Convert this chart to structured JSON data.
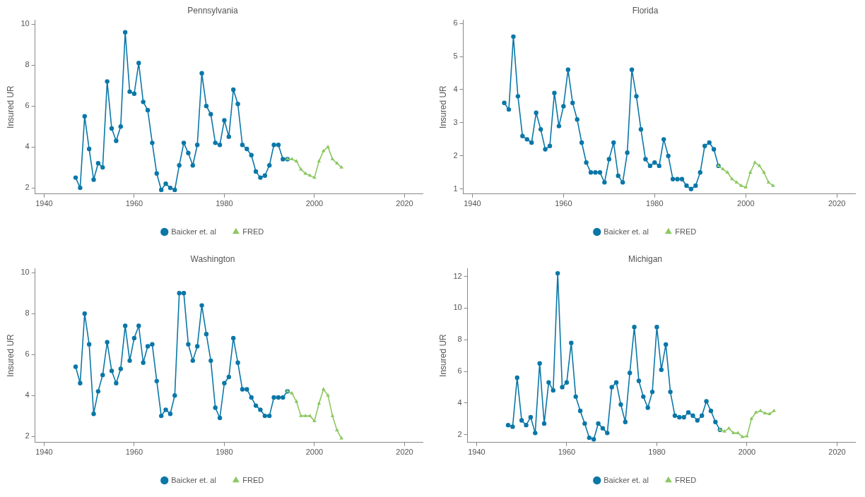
{
  "chart_data": [
    {
      "type": "line",
      "title": "Pennsylvania",
      "ylabel": "Insured UR",
      "xlim": [
        1938,
        2024
      ],
      "xticks": [
        1940,
        1960,
        1980,
        2000,
        2020
      ],
      "ylim": [
        1.7,
        10.2
      ],
      "yticks": [
        2,
        4,
        6,
        8,
        10
      ],
      "grid": false,
      "legend": "bottom",
      "series": [
        {
          "name": "Baicker et. al",
          "color": "#0a77a8",
          "marker": "circle",
          "x": [
            1947,
            1948,
            1949,
            1950,
            1951,
            1952,
            1953,
            1954,
            1955,
            1956,
            1957,
            1958,
            1959,
            1960,
            1961,
            1962,
            1963,
            1964,
            1965,
            1966,
            1967,
            1968,
            1969,
            1970,
            1971,
            1972,
            1973,
            1974,
            1975,
            1976,
            1977,
            1978,
            1979,
            1980,
            1981,
            1982,
            1983,
            1984,
            1985,
            1986,
            1987,
            1988,
            1989,
            1990,
            1991,
            1992,
            1993,
            1994
          ],
          "values": [
            2.5,
            2.0,
            5.5,
            3.9,
            2.4,
            3.2,
            3.0,
            7.2,
            4.9,
            4.3,
            5.0,
            9.6,
            6.7,
            6.6,
            8.1,
            6.2,
            5.8,
            4.2,
            2.7,
            1.9,
            2.2,
            2.0,
            1.9,
            3.1,
            4.2,
            3.7,
            3.1,
            4.1,
            7.6,
            6.0,
            5.6,
            4.2,
            4.1,
            5.3,
            4.5,
            6.8,
            6.1,
            4.1,
            3.9,
            3.6,
            2.8,
            2.5,
            2.6,
            3.1,
            4.1,
            4.1,
            3.4,
            3.4
          ]
        },
        {
          "name": "FRED",
          "color": "#8cc862",
          "marker": "triangle",
          "x": [
            1994,
            1995,
            1996,
            1997,
            1998,
            1999,
            2000,
            2001,
            2002,
            2003,
            2004,
            2005,
            2006
          ],
          "values": [
            3.4,
            3.4,
            3.3,
            2.9,
            2.7,
            2.6,
            2.5,
            3.3,
            3.8,
            4.0,
            3.4,
            3.2,
            3.0
          ]
        }
      ]
    },
    {
      "type": "line",
      "title": "Florida",
      "ylabel": "Insured UR",
      "xlim": [
        1938,
        2024
      ],
      "xticks": [
        1940,
        1960,
        1980,
        2000,
        2020
      ],
      "ylim": [
        0.85,
        6.1
      ],
      "yticks": [
        1,
        2,
        3,
        4,
        5,
        6
      ],
      "grid": false,
      "legend": "bottom",
      "series": [
        {
          "name": "Baicker et. al",
          "color": "#0a77a8",
          "marker": "circle",
          "x": [
            1947,
            1948,
            1949,
            1950,
            1951,
            1952,
            1953,
            1954,
            1955,
            1956,
            1957,
            1958,
            1959,
            1960,
            1961,
            1962,
            1963,
            1964,
            1965,
            1966,
            1967,
            1968,
            1969,
            1970,
            1971,
            1972,
            1973,
            1974,
            1975,
            1976,
            1977,
            1978,
            1979,
            1980,
            1981,
            1982,
            1983,
            1984,
            1985,
            1986,
            1987,
            1988,
            1989,
            1990,
            1991,
            1992,
            1993,
            1994
          ],
          "values": [
            3.6,
            3.4,
            5.6,
            3.8,
            2.6,
            2.5,
            2.4,
            3.3,
            2.8,
            2.2,
            2.3,
            3.9,
            2.9,
            3.5,
            4.6,
            3.6,
            3.1,
            2.4,
            1.8,
            1.5,
            1.5,
            1.5,
            1.2,
            1.9,
            2.4,
            1.4,
            1.2,
            2.1,
            4.6,
            3.8,
            2.8,
            1.9,
            1.7,
            1.8,
            1.7,
            2.5,
            2.0,
            1.3,
            1.3,
            1.3,
            1.1,
            1.0,
            1.1,
            1.5,
            2.3,
            2.4,
            2.2,
            1.7
          ]
        },
        {
          "name": "FRED",
          "color": "#8cc862",
          "marker": "triangle",
          "x": [
            1994,
            1995,
            1996,
            1997,
            1998,
            1999,
            2000,
            2001,
            2002,
            2003,
            2004,
            2005,
            2006
          ],
          "values": [
            1.7,
            1.6,
            1.5,
            1.3,
            1.2,
            1.1,
            1.05,
            1.5,
            1.8,
            1.7,
            1.5,
            1.2,
            1.1
          ]
        }
      ]
    },
    {
      "type": "line",
      "title": "Washington",
      "ylabel": "Insured UR",
      "xlim": [
        1938,
        2024
      ],
      "xticks": [
        1940,
        1960,
        1980,
        2000,
        2020
      ],
      "ylim": [
        1.7,
        10.2
      ],
      "yticks": [
        2,
        4,
        6,
        8,
        10
      ],
      "grid": false,
      "legend": "bottom",
      "series": [
        {
          "name": "Baicker et. al",
          "color": "#0a77a8",
          "marker": "circle",
          "x": [
            1947,
            1948,
            1949,
            1950,
            1951,
            1952,
            1953,
            1954,
            1955,
            1956,
            1957,
            1958,
            1959,
            1960,
            1961,
            1962,
            1963,
            1964,
            1965,
            1966,
            1967,
            1968,
            1969,
            1970,
            1971,
            1972,
            1973,
            1974,
            1975,
            1976,
            1977,
            1978,
            1979,
            1980,
            1981,
            1982,
            1983,
            1984,
            1985,
            1986,
            1987,
            1988,
            1989,
            1990,
            1991,
            1992,
            1993,
            1994
          ],
          "values": [
            5.4,
            4.6,
            8.0,
            6.5,
            3.1,
            4.2,
            5.0,
            6.6,
            5.2,
            4.6,
            5.3,
            7.4,
            5.7,
            6.8,
            7.4,
            5.6,
            6.4,
            6.5,
            4.7,
            3.0,
            3.3,
            3.1,
            4.0,
            9.0,
            9.0,
            6.5,
            5.7,
            6.4,
            8.4,
            7.0,
            5.7,
            3.4,
            2.9,
            4.6,
            4.9,
            6.8,
            5.6,
            4.3,
            4.3,
            3.9,
            3.5,
            3.3,
            3.0,
            3.0,
            3.9,
            3.9,
            3.9,
            4.2
          ]
        },
        {
          "name": "FRED",
          "color": "#8cc862",
          "marker": "triangle",
          "x": [
            1994,
            1995,
            1996,
            1997,
            1998,
            1999,
            2000,
            2001,
            2002,
            2003,
            2004,
            2005,
            2006
          ],
          "values": [
            4.2,
            4.1,
            3.7,
            3.0,
            3.0,
            3.0,
            2.75,
            3.6,
            4.3,
            4.0,
            3.0,
            2.3,
            1.9
          ]
        }
      ]
    },
    {
      "type": "line",
      "title": "Michigan",
      "ylabel": "Insured UR",
      "xlim": [
        1938,
        2024
      ],
      "xticks": [
        1940,
        1960,
        1980,
        2000,
        2020
      ],
      "ylim": [
        1.5,
        12.5
      ],
      "yticks": [
        2,
        4,
        6,
        8,
        10,
        12
      ],
      "grid": false,
      "legend": "bottom",
      "series": [
        {
          "name": "Baicker et. al",
          "color": "#0a77a8",
          "marker": "circle",
          "x": [
            1947,
            1948,
            1949,
            1950,
            1951,
            1952,
            1953,
            1954,
            1955,
            1956,
            1957,
            1958,
            1959,
            1960,
            1961,
            1962,
            1963,
            1964,
            1965,
            1966,
            1967,
            1968,
            1969,
            1970,
            1971,
            1972,
            1973,
            1974,
            1975,
            1976,
            1977,
            1978,
            1979,
            1980,
            1981,
            1982,
            1983,
            1984,
            1985,
            1986,
            1987,
            1988,
            1989,
            1990,
            1991,
            1992,
            1993,
            1994
          ],
          "values": [
            2.6,
            2.5,
            5.6,
            2.9,
            2.6,
            3.1,
            2.1,
            6.5,
            2.7,
            5.3,
            4.8,
            12.2,
            5.0,
            5.3,
            7.8,
            4.4,
            3.5,
            2.7,
            1.8,
            1.7,
            2.7,
            2.4,
            2.1,
            5.0,
            5.3,
            3.9,
            2.8,
            5.9,
            8.8,
            5.4,
            4.4,
            3.7,
            4.7,
            8.8,
            6.1,
            7.7,
            4.7,
            3.2,
            3.1,
            3.1,
            3.4,
            3.2,
            2.9,
            3.2,
            4.1,
            3.5,
            2.8,
            2.3
          ]
        },
        {
          "name": "FRED",
          "color": "#8cc862",
          "marker": "triangle",
          "x": [
            1994,
            1995,
            1996,
            1997,
            1998,
            1999,
            2000,
            2001,
            2002,
            2003,
            2004,
            2005,
            2006
          ],
          "values": [
            2.3,
            2.2,
            2.4,
            2.1,
            2.1,
            1.85,
            1.9,
            3.0,
            3.4,
            3.5,
            3.35,
            3.3,
            3.5
          ]
        }
      ]
    }
  ]
}
